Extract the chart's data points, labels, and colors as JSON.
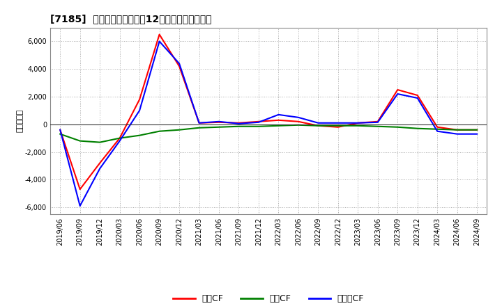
{
  "title": "[7185]  キャッシュフローの12か月移動合計の推移",
  "ylabel": "（百万円）",
  "background_color": "#ffffff",
  "plot_background_color": "#ffffff",
  "grid_color": "#aaaaaa",
  "ylim": [
    -6500,
    7000
  ],
  "yticks": [
    -6000,
    -4000,
    -2000,
    0,
    2000,
    4000,
    6000
  ],
  "legend_labels": [
    "営業CF",
    "投賃CF",
    "フリーCF"
  ],
  "legend_colors": [
    "#ff0000",
    "#008000",
    "#0000ff"
  ],
  "x_labels": [
    "2019/06",
    "2019/09",
    "2019/12",
    "2020/03",
    "2020/06",
    "2020/09",
    "2020/12",
    "2021/03",
    "2021/06",
    "2021/09",
    "2021/12",
    "2022/03",
    "2022/06",
    "2022/09",
    "2022/12",
    "2023/03",
    "2023/06",
    "2023/09",
    "2023/12",
    "2024/03",
    "2024/06",
    "2024/09"
  ],
  "operating_cf": [
    -400,
    -4700,
    -2800,
    -1000,
    1800,
    6500,
    4200,
    100,
    150,
    100,
    200,
    300,
    200,
    -100,
    -200,
    100,
    200,
    2500,
    2100,
    -200,
    -400,
    -400
  ],
  "investing_cf": [
    -700,
    -1200,
    -1300,
    -1000,
    -800,
    -500,
    -400,
    -250,
    -200,
    -150,
    -150,
    -100,
    -50,
    -100,
    -100,
    -100,
    -150,
    -200,
    -300,
    -350,
    -400,
    -400
  ],
  "free_cf": [
    -400,
    -5900,
    -3200,
    -1200,
    1000,
    6000,
    4400,
    100,
    200,
    50,
    150,
    700,
    500,
    100,
    100,
    100,
    150,
    2200,
    1900,
    -500,
    -700,
    -700
  ]
}
